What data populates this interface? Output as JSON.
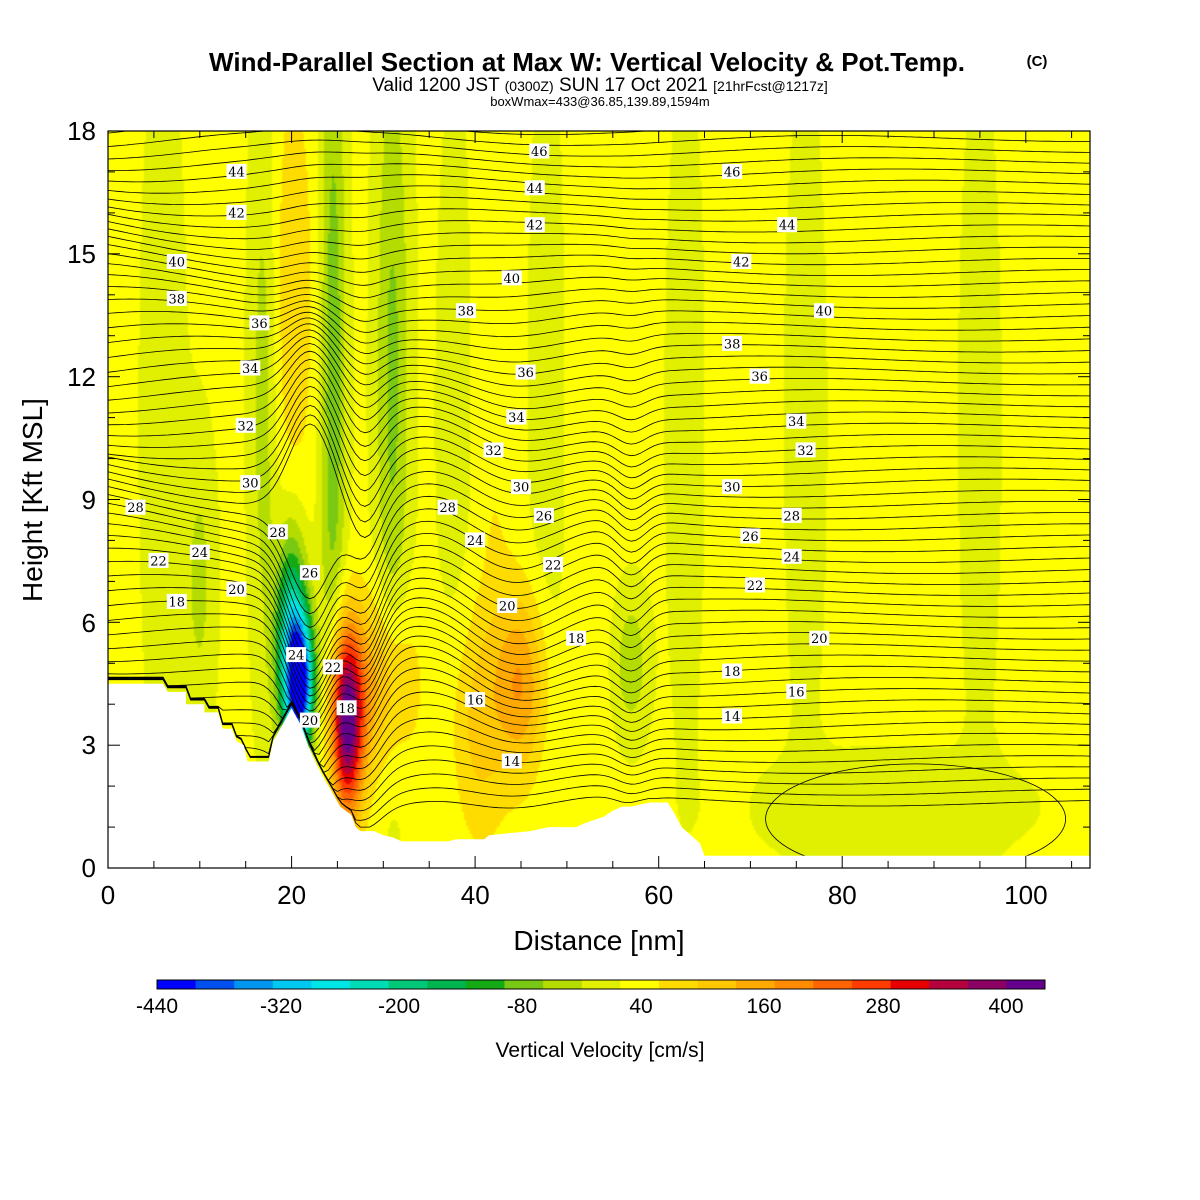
{
  "title": {
    "main": "Wind-Parallel Section at Max W: Vertical Velocity & Pot.Temp.",
    "copyright": "(C)",
    "valid_prefix": "Valid 1200 JST",
    "valid_utc": "(0300Z)",
    "valid_date": "SUN 17 Oct 2021",
    "forecast": "[21hrFcst@1217z]",
    "box": "boxWmax=433@36.85,139.89,1594m"
  },
  "chart_data": {
    "type": "heatmap",
    "xlabel": "Distance [nm]",
    "ylabel": "Height [Kft MSL]",
    "xlim": [
      0,
      107
    ],
    "ylim": [
      0,
      18
    ],
    "x_ticks": [
      "0",
      "20",
      "40",
      "60",
      "80",
      "100"
    ],
    "y_ticks": [
      "0",
      "3",
      "6",
      "9",
      "12",
      "15",
      "18"
    ],
    "x_minor_step": 5,
    "y_minor_step": 1,
    "colorbar": {
      "label": "Vertical Velocity [cm/s]",
      "tick_labels": [
        "-440",
        "-320",
        "-200",
        "-80",
        "40",
        "160",
        "280",
        "400"
      ],
      "tick_values": [
        -440,
        -320,
        -200,
        -80,
        40,
        160,
        280,
        400
      ],
      "bounds": [
        -480,
        -440,
        -400,
        -360,
        -320,
        -280,
        -240,
        -200,
        -160,
        -120,
        -80,
        -40,
        0,
        40,
        80,
        120,
        160,
        200,
        240,
        280,
        320,
        360,
        400,
        440
      ],
      "colors": [
        "#0000ff",
        "#0050f0",
        "#0096f0",
        "#00c8f0",
        "#00e6e6",
        "#00dcb4",
        "#00c878",
        "#00b450",
        "#14aa14",
        "#78c814",
        "#b4dc00",
        "#e1f000",
        "#ffff00",
        "#ffdc00",
        "#ffc800",
        "#ffaa00",
        "#ff8c00",
        "#ff6400",
        "#ff3c00",
        "#e60000",
        "#b4003c",
        "#8c0064",
        "#64008c"
      ]
    },
    "w_features": [
      {
        "x": 26,
        "z": 3.6,
        "w": 433
      },
      {
        "x": 21,
        "z": 4.5,
        "w": -420
      },
      {
        "x": 20,
        "z": 5.5,
        "w": -300
      },
      {
        "x": 24.5,
        "z": 12,
        "w": -120
      },
      {
        "x": 31,
        "z": 12,
        "w": -100
      },
      {
        "x": 17,
        "z": 12,
        "w": -80
      },
      {
        "x": 45,
        "z": 4.5,
        "w": 150
      },
      {
        "x": 30,
        "z": 4.5,
        "w": 120
      },
      {
        "x": 40,
        "z": 3.5,
        "w": 80
      },
      {
        "x": 57,
        "z": 5,
        "w": -80
      },
      {
        "x": 85,
        "z": 1.5,
        "w": -40
      },
      {
        "x": 20,
        "z": 14,
        "w": 60
      },
      {
        "x": 10,
        "z": 7,
        "w": -60
      }
    ],
    "contours": {
      "variable": "potential temperature",
      "labels": [
        {
          "text": "44",
          "x": 14,
          "z": 17.0
        },
        {
          "text": "42",
          "x": 14,
          "z": 16.0
        },
        {
          "text": "40",
          "x": 7.5,
          "z": 14.8
        },
        {
          "text": "38",
          "x": 7.5,
          "z": 13.9
        },
        {
          "text": "36",
          "x": 16.5,
          "z": 13.3
        },
        {
          "text": "34",
          "x": 15.5,
          "z": 12.2
        },
        {
          "text": "32",
          "x": 15,
          "z": 10.8
        },
        {
          "text": "30",
          "x": 15.5,
          "z": 9.4
        },
        {
          "text": "28",
          "x": 18.5,
          "z": 8.2
        },
        {
          "text": "28",
          "x": 3,
          "z": 8.8
        },
        {
          "text": "26",
          "x": 22,
          "z": 7.2
        },
        {
          "text": "22",
          "x": 5.5,
          "z": 7.5
        },
        {
          "text": "24",
          "x": 10,
          "z": 7.7
        },
        {
          "text": "20",
          "x": 14,
          "z": 6.8
        },
        {
          "text": "18",
          "x": 7.5,
          "z": 6.5
        },
        {
          "text": "24",
          "x": 20.5,
          "z": 5.2
        },
        {
          "text": "22",
          "x": 24.5,
          "z": 4.9
        },
        {
          "text": "20",
          "x": 22,
          "z": 3.6
        },
        {
          "text": "18",
          "x": 26,
          "z": 3.9
        },
        {
          "text": "46",
          "x": 47,
          "z": 17.5
        },
        {
          "text": "44",
          "x": 46.5,
          "z": 16.6
        },
        {
          "text": "42",
          "x": 46.5,
          "z": 15.7
        },
        {
          "text": "40",
          "x": 44,
          "z": 14.4
        },
        {
          "text": "38",
          "x": 39,
          "z": 13.6
        },
        {
          "text": "36",
          "x": 45.5,
          "z": 12.1
        },
        {
          "text": "34",
          "x": 44.5,
          "z": 11.0
        },
        {
          "text": "32",
          "x": 42,
          "z": 10.2
        },
        {
          "text": "30",
          "x": 45,
          "z": 9.3
        },
        {
          "text": "28",
          "x": 37,
          "z": 8.8
        },
        {
          "text": "26",
          "x": 47.5,
          "z": 8.6
        },
        {
          "text": "24",
          "x": 40,
          "z": 8.0
        },
        {
          "text": "22",
          "x": 48.5,
          "z": 7.4
        },
        {
          "text": "20",
          "x": 43.5,
          "z": 6.4
        },
        {
          "text": "18",
          "x": 51,
          "z": 5.6
        },
        {
          "text": "16",
          "x": 40,
          "z": 4.1
        },
        {
          "text": "14",
          "x": 44,
          "z": 2.6
        },
        {
          "text": "46",
          "x": 68,
          "z": 17.0
        },
        {
          "text": "44",
          "x": 74,
          "z": 15.7
        },
        {
          "text": "42",
          "x": 69,
          "z": 14.8
        },
        {
          "text": "40",
          "x": 78,
          "z": 13.6
        },
        {
          "text": "38",
          "x": 68,
          "z": 12.8
        },
        {
          "text": "36",
          "x": 71,
          "z": 12.0
        },
        {
          "text": "34",
          "x": 75,
          "z": 10.9
        },
        {
          "text": "32",
          "x": 76,
          "z": 10.2
        },
        {
          "text": "30",
          "x": 68,
          "z": 9.3
        },
        {
          "text": "28",
          "x": 74.5,
          "z": 8.6
        },
        {
          "text": "26",
          "x": 70,
          "z": 8.1
        },
        {
          "text": "24",
          "x": 74.5,
          "z": 7.6
        },
        {
          "text": "22",
          "x": 70.5,
          "z": 6.9
        },
        {
          "text": "20",
          "x": 77.5,
          "z": 5.6
        },
        {
          "text": "18",
          "x": 68,
          "z": 4.8
        },
        {
          "text": "16",
          "x": 75,
          "z": 4.3
        },
        {
          "text": "14",
          "x": 68,
          "z": 3.7
        }
      ]
    }
  }
}
